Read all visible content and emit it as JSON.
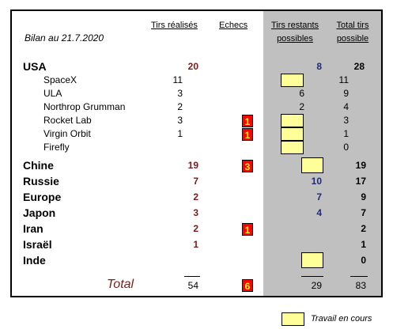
{
  "bilan": "Bilan au 21.7.2020",
  "headers": {
    "tirs_realises": "Tirs réalisés",
    "echecs": "Echecs",
    "tirs_restants_1": "Tirs restants",
    "tirs_restants_2": "possibles",
    "total_tirs_1": "Total tirs",
    "total_tirs_2": "possible"
  },
  "usa": {
    "name": "USA",
    "realises": "20",
    "restants": "8",
    "total": "28"
  },
  "companies": [
    {
      "name": "SpaceX",
      "realises": "11",
      "echecs": "",
      "restants": "",
      "total": "11",
      "work": true
    },
    {
      "name": "ULA",
      "realises": "3",
      "echecs": "",
      "restants": "6",
      "total": "9",
      "work": false
    },
    {
      "name": "Northrop Grumman",
      "realises": "2",
      "echecs": "",
      "restants": "2",
      "total": "4",
      "work": false
    },
    {
      "name": "Rocket Lab",
      "realises": "3",
      "echecs": "1",
      "restants": "",
      "total": "3",
      "work": true
    },
    {
      "name": "Virgin Orbit",
      "realises": "1",
      "echecs": "1",
      "restants": "",
      "total": "1",
      "work": true
    },
    {
      "name": "Firefly",
      "realises": "",
      "echecs": "",
      "restants": "",
      "total": "0",
      "work": true
    }
  ],
  "countries": [
    {
      "name": "Chine",
      "realises": "19",
      "echecs": "3",
      "restants": "",
      "total": "19",
      "work": true
    },
    {
      "name": "Russie",
      "realises": "7",
      "echecs": "",
      "restants": "10",
      "total": "17",
      "work": false
    },
    {
      "name": "Europe",
      "realises": "2",
      "echecs": "",
      "restants": "7",
      "total": "9",
      "work": false
    },
    {
      "name": "Japon",
      "realises": "3",
      "echecs": "",
      "restants": "4",
      "total": "7",
      "work": false
    },
    {
      "name": "Iran",
      "realises": "2",
      "echecs": "1",
      "restants": "",
      "total": "2",
      "work": false
    },
    {
      "name": "Israël",
      "realises": "1",
      "echecs": "",
      "restants": "",
      "total": "1",
      "work": false
    },
    {
      "name": "Inde",
      "realises": "",
      "echecs": "",
      "restants": "",
      "total": "0",
      "work": true
    }
  ],
  "totals": {
    "label": "Total",
    "realises": "54",
    "echecs": "6",
    "restants": "29",
    "total": "83"
  },
  "legend": {
    "label": "Travail en cours"
  },
  "colors": {
    "maroon": "#7f1a1a",
    "navy": "#1f2a78",
    "fail_bg": "#ff0000",
    "fail_text": "#ffff00",
    "work_bg": "#ffff99",
    "panel": "#c0c0c0"
  }
}
